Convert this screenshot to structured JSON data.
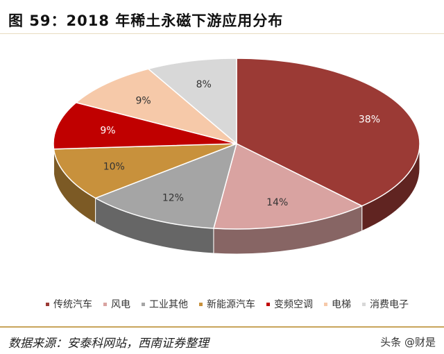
{
  "title": "图 59：2018 年稀土永磁下游应用分布",
  "chart_data": {
    "type": "pie",
    "style": "3d",
    "categories": [
      "传统汽车",
      "风电",
      "工业其他",
      "新能源汽车",
      "变频空调",
      "电梯",
      "消费电子"
    ],
    "values": [
      38,
      14,
      12,
      10,
      9,
      9,
      8
    ],
    "labels": [
      "38%",
      "14%",
      "12%",
      "10%",
      "9%",
      "9%",
      "8%"
    ],
    "colors": [
      "#9B3A35",
      "#D9A3A1",
      "#A5A5A5",
      "#C8913C",
      "#C00000",
      "#F6C9A9",
      "#D8D8D8"
    ],
    "legend_position": "bottom"
  },
  "source": "数据来源：安泰科网站，西南证券整理",
  "watermark": "头条 @财是"
}
